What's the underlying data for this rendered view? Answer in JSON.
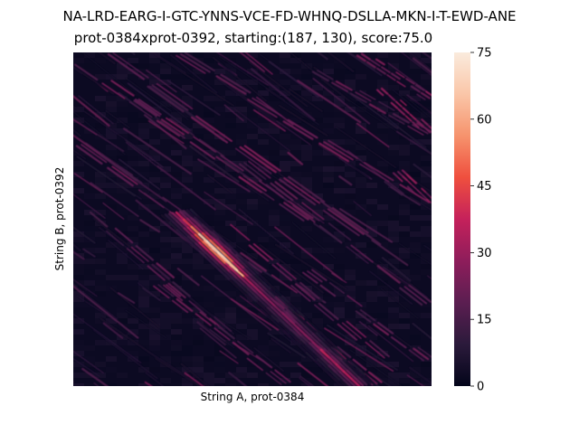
{
  "title": "NA-LRD-EARG-I-GTC-YNNS-VCE-FD-WHNQ-DSLLA-MKN-I-T-EWD-ANE",
  "subtitle": "prot-0384xprot-0392, starting:(187, 130), score:75.0",
  "chart_data": {
    "type": "heatmap",
    "title": "NA-LRD-EARG-I-GTC-YNNS-VCE-FD-WHNQ-DSLLA-MKN-I-T-EWD-ANE",
    "subtitle": "prot-0384xprot-0392, starting:(187, 130), score:75.0",
    "xlabel": "String A, prot-0384",
    "ylabel": "String B, prot-0392",
    "x_ticks": [],
    "y_ticks": [],
    "colorbar": {
      "min": 0,
      "max": 75,
      "ticks": [
        0,
        15,
        30,
        45,
        60,
        75
      ],
      "colormap": "rocket",
      "colors": [
        "#03051a",
        "#2b1a3b",
        "#5b1e51",
        "#8e1d5b",
        "#c5215b",
        "#ef4f3e",
        "#f6936d",
        "#fac6a8",
        "#faebdd"
      ]
    },
    "peak": {
      "start_x": 187,
      "start_y": 130,
      "score": 75.0
    }
  }
}
